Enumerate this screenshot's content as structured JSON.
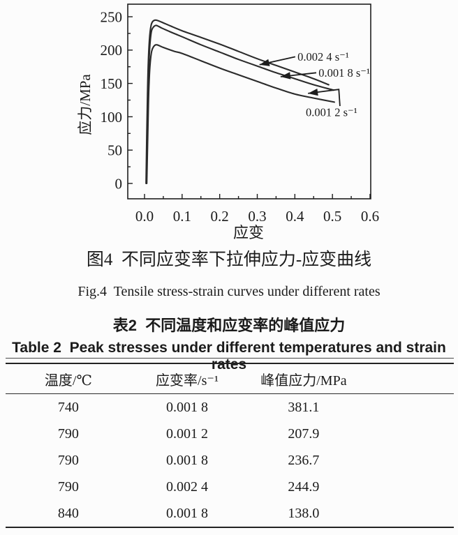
{
  "figure": {
    "caption_zh": "图4  不同应变率下拉伸应力-应变曲线",
    "caption_en": "Fig.4  Tensile stress-strain curves under different rates"
  },
  "table": {
    "caption_zh": "表2  不同温度和应变率的峰值应力",
    "caption_en": "Table 2  Peak stresses under different temperatures and strain rates",
    "columns": [
      "温度/℃",
      "应变率/s⁻¹",
      "峰值应力/MPa"
    ],
    "rows": [
      [
        "740",
        "0.001 8",
        "381.1"
      ],
      [
        "790",
        "0.001 2",
        "207.9"
      ],
      [
        "790",
        "0.001 8",
        "236.7"
      ],
      [
        "790",
        "0.002 4",
        "244.9"
      ],
      [
        "840",
        "0.001 8",
        "138.0"
      ]
    ]
  },
  "chart_data": {
    "type": "line",
    "title": "",
    "xlabel": "应变",
    "ylabel": "应力/MPa",
    "xlim": [
      0,
      0.6
    ],
    "ylim": [
      0,
      250
    ],
    "grid": false,
    "legend_position": "inline-annotations",
    "line_color": "#2b2b2b",
    "x_major_ticks": [
      "0.0",
      "0.1",
      "0.2",
      "0.3",
      "0.4",
      "0.5",
      "0.6"
    ],
    "x_minor_step": 0.05,
    "y_major_ticks": [
      "0",
      "50",
      "100",
      "150",
      "200",
      "250"
    ],
    "y_minor_step": 25,
    "series": [
      {
        "name": "0.002 4 s⁻¹",
        "peak_stress_mpa": 244.9,
        "points": [
          [
            0.004,
            0
          ],
          [
            0.006,
            70
          ],
          [
            0.008,
            135
          ],
          [
            0.01,
            180
          ],
          [
            0.013,
            215
          ],
          [
            0.017,
            236
          ],
          [
            0.022,
            243
          ],
          [
            0.03,
            245
          ],
          [
            0.045,
            242
          ],
          [
            0.07,
            236
          ],
          [
            0.1,
            229
          ],
          [
            0.15,
            219
          ],
          [
            0.2,
            209
          ],
          [
            0.25,
            198
          ],
          [
            0.3,
            187
          ],
          [
            0.35,
            177
          ],
          [
            0.4,
            167
          ],
          [
            0.45,
            157
          ],
          [
            0.49,
            148
          ]
        ]
      },
      {
        "name": "0.001 8 s⁻¹",
        "peak_stress_mpa": 236.7,
        "points": [
          [
            0.005,
            0
          ],
          [
            0.007,
            65
          ],
          [
            0.009,
            125
          ],
          [
            0.011,
            170
          ],
          [
            0.014,
            205
          ],
          [
            0.018,
            227
          ],
          [
            0.023,
            234
          ],
          [
            0.031,
            237
          ],
          [
            0.046,
            233
          ],
          [
            0.07,
            227
          ],
          [
            0.1,
            220
          ],
          [
            0.15,
            208
          ],
          [
            0.2,
            197
          ],
          [
            0.25,
            186
          ],
          [
            0.3,
            176
          ],
          [
            0.35,
            166
          ],
          [
            0.4,
            157
          ],
          [
            0.45,
            148
          ],
          [
            0.503,
            140
          ]
        ]
      },
      {
        "name": "0.001 2 s⁻¹",
        "peak_stress_mpa": 207.9,
        "points": [
          [
            0.006,
            0
          ],
          [
            0.008,
            55
          ],
          [
            0.01,
            110
          ],
          [
            0.012,
            150
          ],
          [
            0.015,
            180
          ],
          [
            0.019,
            198
          ],
          [
            0.024,
            205
          ],
          [
            0.032,
            208
          ],
          [
            0.05,
            204
          ],
          [
            0.08,
            198
          ],
          [
            0.1,
            195
          ],
          [
            0.15,
            184
          ],
          [
            0.2,
            173
          ],
          [
            0.25,
            163
          ],
          [
            0.3,
            153
          ],
          [
            0.35,
            143
          ],
          [
            0.4,
            134
          ],
          [
            0.45,
            128
          ],
          [
            0.505,
            122
          ]
        ]
      }
    ],
    "annotations": [
      {
        "label": "0.002 4 s⁻¹",
        "text_at": [
          0.407,
          190
        ],
        "leader": [
          [
            0.401,
            190
          ],
          [
            0.306,
            178
          ]
        ]
      },
      {
        "label": "0.001 8 s⁻¹",
        "text_at": [
          0.463,
          166
        ],
        "leader": [
          [
            0.457,
            166
          ],
          [
            0.362,
            160
          ]
        ]
      },
      {
        "label": "0.001 2 s⁻¹",
        "text_at": [
          0.429,
          107
        ],
        "leader": [
          [
            0.52,
            116
          ],
          [
            0.517,
            141
          ],
          [
            0.435,
            135
          ]
        ]
      }
    ]
  }
}
